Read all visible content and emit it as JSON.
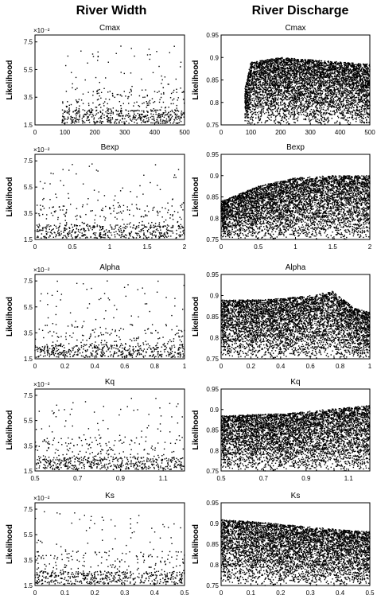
{
  "column_titles": [
    "River Width",
    "River Discharge"
  ],
  "chart_data": [
    {
      "type": "scatter",
      "column": "River Width",
      "title": "Cmax",
      "ylabel": "Likelihood",
      "y_multiplier": "×10⁻²",
      "xlim": [
        0,
        500
      ],
      "ylim": [
        1.5,
        8
      ],
      "xticks": [
        "0",
        "100",
        "200",
        "300",
        "400",
        "500"
      ],
      "yticks": [
        "1.5",
        "3.5",
        "5.5",
        "7.5"
      ],
      "yticks_values": [
        1.5,
        3.5,
        5.5,
        7.5
      ],
      "points": {
        "count": 650,
        "x_range": [
          90,
          500
        ],
        "baseline": [
          1.6,
          2.6
        ],
        "peak": 7.3,
        "shape": "scatter_uniform"
      }
    },
    {
      "type": "scatter",
      "column": "River Discharge",
      "title": "Cmax",
      "ylabel": "Likelihood",
      "xlim": [
        0,
        500
      ],
      "ylim": [
        0.75,
        0.95
      ],
      "xticks": [
        "0",
        "100",
        "200",
        "300",
        "400",
        "500"
      ],
      "yticks": [
        "0.75",
        "0.8",
        "0.85",
        "0.9",
        "0.95"
      ],
      "yticks_values": [
        0.75,
        0.8,
        0.85,
        0.9,
        0.95
      ],
      "points": {
        "count": 5200,
        "x_range": [
          80,
          500
        ],
        "upper_edge": [
          [
            80,
            0.83
          ],
          [
            100,
            0.89
          ],
          [
            200,
            0.9
          ],
          [
            300,
            0.895
          ],
          [
            500,
            0.885
          ]
        ],
        "shape": "dense_cloud"
      }
    },
    {
      "type": "scatter",
      "column": "River Width",
      "title": "Bexp",
      "ylabel": "Likelihood",
      "y_multiplier": "×10⁻²",
      "xlim": [
        0,
        2
      ],
      "ylim": [
        1.5,
        8
      ],
      "xticks": [
        "0",
        "0.5",
        "1",
        "1.5",
        "2"
      ],
      "yticks": [
        "1.5",
        "3.5",
        "5.5",
        "7.5"
      ],
      "yticks_values": [
        1.5,
        3.5,
        5.5,
        7.5
      ],
      "points": {
        "count": 650,
        "x_range": [
          0,
          2
        ],
        "baseline": [
          1.6,
          2.6
        ],
        "peak": 7.4,
        "shape": "scatter_uniform"
      }
    },
    {
      "type": "scatter",
      "column": "River Discharge",
      "title": "Bexp",
      "ylabel": "Likelihood",
      "xlim": [
        0,
        2
      ],
      "ylim": [
        0.75,
        0.95
      ],
      "xticks": [
        "0",
        "0.5",
        "1",
        "1.5",
        "2"
      ],
      "yticks": [
        "0.75",
        "0.8",
        "0.85",
        "0.9",
        "0.95"
      ],
      "yticks_values": [
        0.75,
        0.8,
        0.85,
        0.9,
        0.95
      ],
      "points": {
        "count": 5200,
        "x_range": [
          0,
          2
        ],
        "upper_edge": [
          [
            0,
            0.84
          ],
          [
            0.5,
            0.875
          ],
          [
            1,
            0.895
          ],
          [
            1.5,
            0.9
          ],
          [
            2,
            0.9
          ]
        ],
        "shape": "dense_cloud"
      }
    },
    {
      "type": "scatter",
      "column": "River Width",
      "title": "Alpha",
      "ylabel": "Likelihood",
      "y_multiplier": "×10⁻²",
      "xlim": [
        0,
        1
      ],
      "ylim": [
        1.5,
        8
      ],
      "xticks": [
        "0",
        "0.2",
        "0.4",
        "0.6",
        "0.8",
        "1"
      ],
      "yticks": [
        "1.5",
        "3.5",
        "5.5",
        "7.5"
      ],
      "yticks_values": [
        1.5,
        3.5,
        5.5,
        7.5
      ],
      "points": {
        "count": 650,
        "x_range": [
          0,
          1
        ],
        "baseline": [
          1.6,
          2.6
        ],
        "peak": 7.5,
        "shape": "scatter_uniform"
      }
    },
    {
      "type": "scatter",
      "column": "River Discharge",
      "title": "Alpha",
      "ylabel": "Likelihood",
      "xlim": [
        0,
        1
      ],
      "ylim": [
        0.75,
        0.95
      ],
      "xticks": [
        "0",
        "0.2",
        "0.4",
        "0.6",
        "0.8",
        "1"
      ],
      "yticks": [
        "0.75",
        "0.8",
        "0.85",
        "0.9",
        "0.95"
      ],
      "yticks_values": [
        0.75,
        0.8,
        0.85,
        0.9,
        0.95
      ],
      "points": {
        "count": 5200,
        "x_range": [
          0,
          1
        ],
        "upper_edge": [
          [
            0,
            0.89
          ],
          [
            0.3,
            0.89
          ],
          [
            0.6,
            0.9
          ],
          [
            0.75,
            0.91
          ],
          [
            0.9,
            0.87
          ],
          [
            1,
            0.86
          ]
        ],
        "shape": "dense_cloud"
      }
    },
    {
      "type": "scatter",
      "column": "River Width",
      "title": "Kq",
      "ylabel": "Likelihood",
      "y_multiplier": "×10⁻²",
      "xlim": [
        0.5,
        1.2
      ],
      "ylim": [
        1.5,
        8
      ],
      "xticks": [
        "0.5",
        "0.7",
        "0.9",
        "1.1"
      ],
      "yticks": [
        "1.5",
        "3.5",
        "5.5",
        "7.5"
      ],
      "yticks_values": [
        1.5,
        3.5,
        5.5,
        7.5
      ],
      "points": {
        "count": 650,
        "x_range": [
          0.5,
          1.2
        ],
        "baseline": [
          1.6,
          2.6
        ],
        "peak": 7.3,
        "shape": "scatter_uniform"
      }
    },
    {
      "type": "scatter",
      "column": "River Discharge",
      "title": "Kq",
      "ylabel": "Likelihood",
      "xlim": [
        0.5,
        1.2
      ],
      "ylim": [
        0.75,
        0.95
      ],
      "xticks": [
        "0.5",
        "0.7",
        "0.9",
        "1.1"
      ],
      "yticks": [
        "0.75",
        "0.8",
        "0.85",
        "0.9",
        "0.95"
      ],
      "yticks_values": [
        0.75,
        0.8,
        0.85,
        0.9,
        0.95
      ],
      "points": {
        "count": 5200,
        "x_range": [
          0.5,
          1.2
        ],
        "upper_edge": [
          [
            0.5,
            0.885
          ],
          [
            0.8,
            0.89
          ],
          [
            1,
            0.9
          ],
          [
            1.2,
            0.91
          ]
        ],
        "shape": "dense_cloud"
      }
    },
    {
      "type": "scatter",
      "column": "River Width",
      "title": "Ks",
      "ylabel": "Likelihood",
      "y_multiplier": "×10⁻²",
      "xlim": [
        0,
        0.5
      ],
      "ylim": [
        1.5,
        8
      ],
      "xticks": [
        "0",
        "0.1",
        "0.2",
        "0.3",
        "0.4",
        "0.5"
      ],
      "yticks": [
        "1.5",
        "3.5",
        "5.5",
        "7.5"
      ],
      "yticks_values": [
        1.5,
        3.5,
        5.5,
        7.5
      ],
      "points": {
        "count": 650,
        "x_range": [
          0,
          0.5
        ],
        "baseline": [
          1.6,
          2.6
        ],
        "peak": 7.3,
        "shape": "scatter_uniform"
      }
    },
    {
      "type": "scatter",
      "column": "River Discharge",
      "title": "Ks",
      "ylabel": "Likelihood",
      "xlim": [
        0,
        0.5
      ],
      "ylim": [
        0.75,
        0.95
      ],
      "xticks": [
        "0",
        "0.1",
        "0.2",
        "0.3",
        "0.4",
        "0.5"
      ],
      "yticks": [
        "0.75",
        "0.8",
        "0.85",
        "0.9",
        "0.95"
      ],
      "yticks_values": [
        0.75,
        0.8,
        0.85,
        0.9,
        0.95
      ],
      "points": {
        "count": 5200,
        "x_range": [
          0,
          0.5
        ],
        "upper_edge": [
          [
            0,
            0.91
          ],
          [
            0.1,
            0.905
          ],
          [
            0.25,
            0.895
          ],
          [
            0.4,
            0.885
          ],
          [
            0.5,
            0.88
          ]
        ],
        "shape": "dense_cloud"
      }
    }
  ]
}
